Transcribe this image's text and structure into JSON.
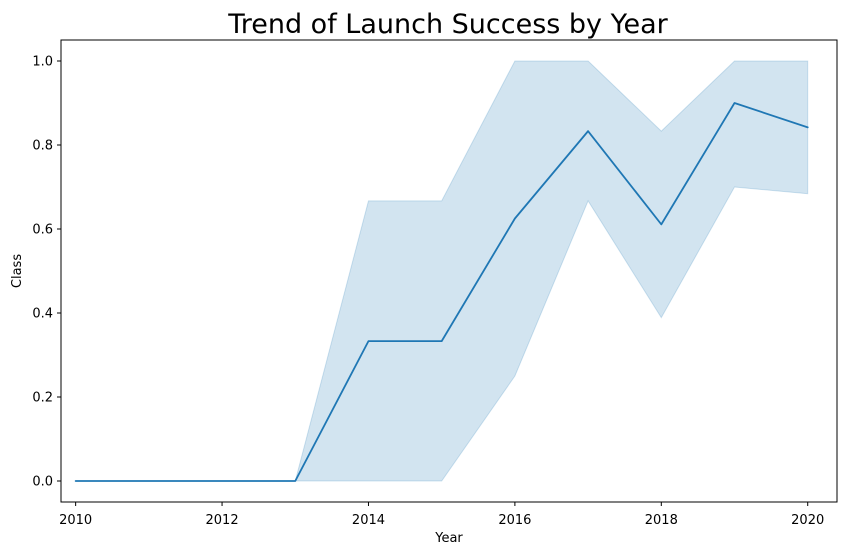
{
  "chart_data": {
    "type": "line",
    "title": "Trend of Launch Success by Year",
    "xlabel": "Year",
    "ylabel": "Class",
    "xlim": [
      2009.8,
      2020.4
    ],
    "ylim": [
      -0.05,
      1.05
    ],
    "x_ticks": [
      "2010",
      "2012",
      "2014",
      "2016",
      "2018",
      "2020"
    ],
    "y_ticks": [
      "0.0",
      "0.2",
      "0.4",
      "0.6",
      "0.8",
      "1.0"
    ],
    "grid": false,
    "legend": "none",
    "x": [
      2010,
      2011,
      2012,
      2013,
      2014,
      2015,
      2016,
      2017,
      2018,
      2019,
      2020
    ],
    "series": [
      {
        "values": [
          0.0,
          0.0,
          0.0,
          0.0,
          0.333,
          0.333,
          0.625,
          0.833,
          0.611,
          0.9,
          0.842
        ],
        "ci_lower": [
          0.0,
          0.0,
          0.0,
          0.0,
          0.0,
          0.0,
          0.25,
          0.667,
          0.389,
          0.7,
          0.684
        ],
        "ci_upper": [
          0.0,
          0.0,
          0.0,
          0.0,
          0.667,
          0.667,
          1.0,
          1.0,
          0.833,
          1.0,
          1.0
        ],
        "color": "#1f77b4",
        "band_color": "#1f77b4"
      }
    ]
  }
}
